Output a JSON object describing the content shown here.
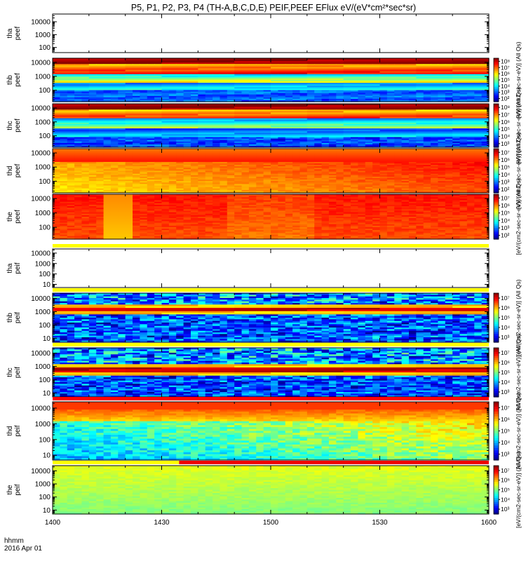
{
  "chart_data": {
    "type": "heatmap",
    "title": "P5, P1, P2, P3, P4 (TH-A,B,C,D,E) PEIF,PEEF EFlux eV/(eV*cm²*sec*sr)",
    "time_axis": {
      "ticks": [
        "1400",
        "1430",
        "1500",
        "1530",
        "1600"
      ],
      "label_line1": "hhmm",
      "label_line2": "2016 Apr 01",
      "range_minutes": [
        0,
        120
      ]
    },
    "energy_axis": {
      "scale": "log",
      "unit": "eV"
    },
    "colorbar": {
      "scale": "log",
      "colormap": "rainbow"
    },
    "panels": [
      {
        "probe": "tha",
        "product": "peef",
        "label": [
          "tha",
          "peef"
        ],
        "yticks": [
          "10000",
          "1000",
          "100"
        ],
        "ylim": [
          40,
          40000
        ],
        "empty": true
      },
      {
        "probe": "thb",
        "product": "peef",
        "label": [
          "thb",
          "peef"
        ],
        "yticks": [
          "10000",
          "1000",
          "100"
        ],
        "ylim": [
          15,
          20000
        ],
        "clim_exp": [
          2,
          8
        ],
        "cticks": [
          "10⁸",
          "10⁷",
          "10⁶",
          "10⁵",
          "10⁴",
          "10³",
          "10²"
        ],
        "clabel": "[eV/(cm2-sec-sr-eV)] (All Qs)"
      },
      {
        "probe": "thc",
        "product": "peef",
        "label": [
          "thc",
          "peef"
        ],
        "yticks": [
          "10000",
          "1000",
          "100"
        ],
        "ylim": [
          15,
          20000
        ],
        "clim_exp": [
          3,
          8
        ],
        "cticks": [
          "10⁸",
          "10⁷",
          "10⁶",
          "10⁵",
          "10⁴",
          "10³"
        ],
        "clabel": "[eV/(cm2-sec-sr-eV)] (All Qs)"
      },
      {
        "probe": "thd",
        "product": "peef",
        "label": [
          "thd",
          "peef"
        ],
        "yticks": [
          "10000",
          "1000",
          "100"
        ],
        "ylim": [
          15,
          20000
        ],
        "clim_exp": [
          2,
          7
        ],
        "cticks": [
          "10⁷",
          "10⁶",
          "10⁵",
          "10⁴",
          "10³",
          "10²"
        ],
        "clabel": "[eV/(cm2-sec-sr-eV)] (All Qs)"
      },
      {
        "probe": "the",
        "product": "peef",
        "label": [
          "the",
          "peef"
        ],
        "yticks": [
          "10000",
          "1000",
          "100"
        ],
        "ylim": [
          15,
          20000
        ],
        "clim_exp": [
          2,
          7
        ],
        "cticks": [
          "10⁷",
          "10⁶",
          "10⁵",
          "10⁴",
          "10³",
          "10²"
        ],
        "clabel": "[eV/(cm2-sec-sr-eV)] (All Qs)"
      },
      {
        "probe": "tha",
        "product": "peif",
        "label": [
          "tha",
          "peif"
        ],
        "yticks": [
          "10000",
          "1000",
          "100",
          "10"
        ],
        "ylim": [
          5,
          25000
        ],
        "empty": true
      },
      {
        "probe": "thb",
        "product": "peif",
        "label": [
          "thb",
          "peif"
        ],
        "yticks": [
          "10000",
          "1000",
          "100",
          "10"
        ],
        "ylim": [
          5,
          25000
        ],
        "clim_exp": [
          3,
          7
        ],
        "cticks": [
          "10⁷",
          "10⁶",
          "10⁵",
          "10⁴",
          "10³"
        ],
        "clabel": "[eV/(cm2-sec-sr-eV)] (All Qs)"
      },
      {
        "probe": "thc",
        "product": "peif",
        "label": [
          "thc",
          "peif"
        ],
        "yticks": [
          "10000",
          "1000",
          "100",
          "10"
        ],
        "ylim": [
          5,
          25000
        ],
        "clim_exp": [
          3,
          7
        ],
        "cticks": [
          "10⁷",
          "10⁶",
          "10⁵",
          "10⁴",
          "10³"
        ],
        "clabel": "[eV/(cm2-sec-sr-eV)] (All Qs)"
      },
      {
        "probe": "thd",
        "product": "peif",
        "label": [
          "thd",
          "peif"
        ],
        "yticks": [
          "10000",
          "1000",
          "100",
          "10"
        ],
        "ylim": [
          5,
          25000
        ],
        "clim_exp": [
          3,
          7
        ],
        "cticks": [
          "10⁷",
          "10⁶",
          "10⁵",
          "10⁴",
          "10³"
        ],
        "clabel": "[eV/(cm2-sec-sr-eV)] (All Qs)"
      },
      {
        "probe": "the",
        "product": "peif",
        "label": [
          "the",
          "peif"
        ],
        "yticks": [
          "10000",
          "1000",
          "100",
          "10"
        ],
        "ylim": [
          5,
          25000
        ],
        "clim_exp": [
          3,
          7
        ],
        "cticks": [
          "10⁷",
          "10⁶",
          "10⁵",
          "10⁴",
          "10³"
        ],
        "clabel": "[eV/(cm2-sec-sr-eV)] (All Qs)"
      }
    ]
  }
}
